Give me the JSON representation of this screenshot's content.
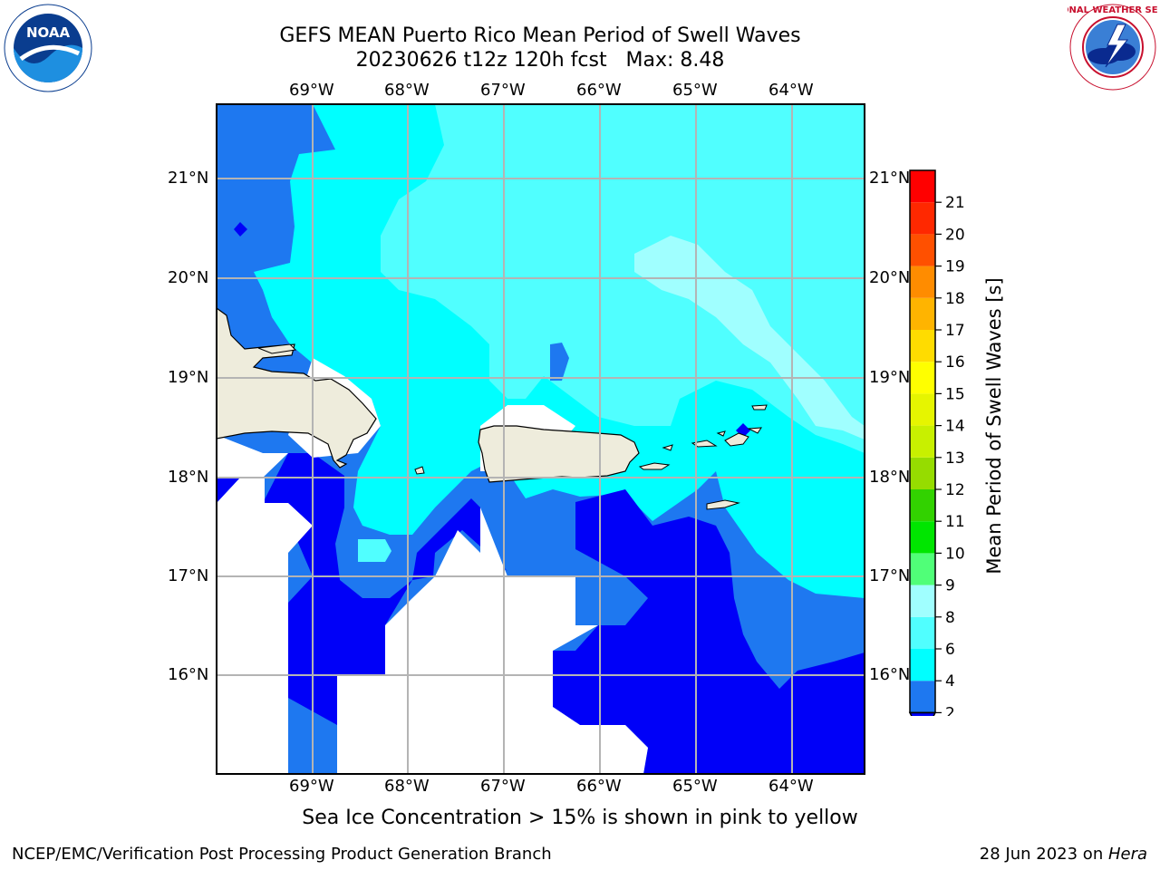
{
  "title": {
    "line1": "GEFS MEAN Puerto Rico Mean Period of Swell Waves",
    "line2": "20230626 t12z 120h fcst   Max: 8.48"
  },
  "map": {
    "lon_labels": [
      "69°W",
      "68°W",
      "67°W",
      "66°W",
      "65°W",
      "64°W"
    ],
    "lat_labels": [
      "21°N",
      "20°N",
      "19°N",
      "18°N",
      "17°N",
      "16°N"
    ],
    "colors": {
      "land": "#eeecdc",
      "c2": "#1e78f0",
      "c0": "#0000f8",
      "c4": "#00ffff",
      "c6": "#50ffff",
      "c8": "#a0ffff",
      "grid": "#b4b4b4"
    }
  },
  "colorbar": {
    "label": "Mean Period of Swell Waves [s]",
    "ticks": [
      "2",
      "4",
      "6",
      "8",
      "9",
      "10",
      "11",
      "12",
      "13",
      "14",
      "15",
      "16",
      "17",
      "18",
      "19",
      "20",
      "21"
    ],
    "colors": [
      "#1e78f0",
      "#00ffff",
      "#50ffff",
      "#a0ffff",
      "#50ff78",
      "#00e600",
      "#32d200",
      "#96dc00",
      "#c8f000",
      "#e6f500",
      "#ffff00",
      "#ffdc00",
      "#ffb400",
      "#ff8c00",
      "#ff5000",
      "#ff2800",
      "#ff0000"
    ],
    "extend_color": "#0000f8"
  },
  "caption": "Sea Ice Concentration > 15% is shown in pink to yellow",
  "footer": {
    "left": "NCEP/EMC/Verification Post Processing Product Generation Branch",
    "date": "28 Jun 2023 on ",
    "host": "Hera"
  },
  "logos": {
    "noaa_text": "NOAA",
    "noaa_ring": "NATIONAL OCEANIC AND ATMOSPHERIC ADMINISTRATION · U.S. DEPARTMENT OF COMMERCE",
    "nws_ring": "NATIONAL WEATHER SERVICE"
  }
}
